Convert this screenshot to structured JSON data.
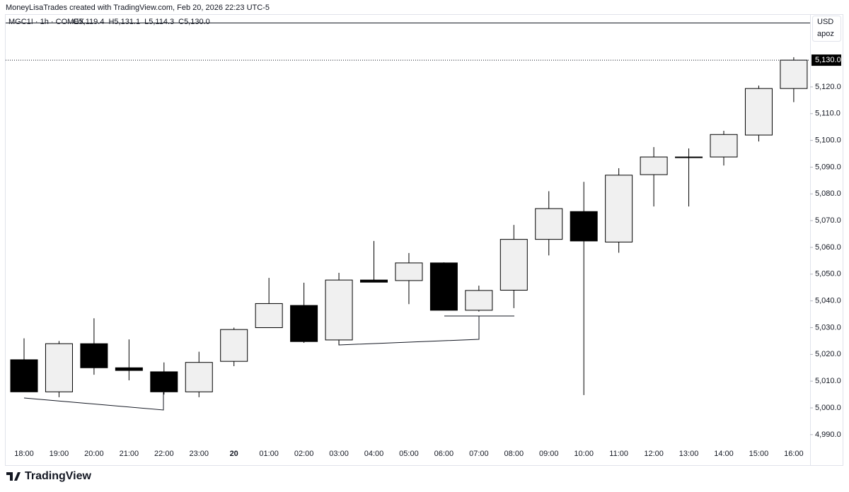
{
  "header": "MoneyLisaTrades created with TradingView.com, Feb 20, 2026 22:23 UTC-5",
  "footer": "TradingView",
  "chart_data": {
    "type": "candlestick",
    "symbol": "MGC1! · 1h · COMEX",
    "legend": [
      "O5,119.4",
      "H5,131.1",
      "L5,114.3",
      "C5,130.0"
    ],
    "currency": "USD",
    "scale_label": "apoz",
    "categories": [
      "18:00",
      "19:00",
      "20:00",
      "21:00",
      "22:00",
      "23:00",
      "20",
      "01:00",
      "02:00",
      "03:00",
      "04:00",
      "05:00",
      "06:00",
      "07:00",
      "08:00",
      "09:00",
      "10:00",
      "11:00",
      "12:00",
      "13:00",
      "14:00",
      "15:00",
      "16:00"
    ],
    "open": [
      5018,
      5006,
      5024,
      5015,
      5013.5,
      5006,
      5017.4,
      5030,
      5038.3,
      5025.4,
      5047.8,
      5047.6,
      5054.2,
      5036.5,
      5044,
      5063,
      5073.4,
      5062,
      5087.2,
      5093.6,
      5093.8,
      5102,
      5119.4
    ],
    "high": [
      5026,
      5025,
      5033.5,
      5025.6,
      5017,
      5021,
      5030,
      5048.6,
      5046.8,
      5050.5,
      5062.4,
      5057.9,
      5054.4,
      5045.7,
      5068.4,
      5081,
      5084.5,
      5089.6,
      5097.5,
      5097,
      5103.6,
      5120.5,
      5131.1
    ],
    "low": [
      5006,
      5004,
      5012.4,
      5010.3,
      5005,
      5004,
      5015.6,
      5030,
      5024.3,
      5023.5,
      5047,
      5038.8,
      5036.5,
      5036,
      5037.3,
      5057,
      5004.8,
      5058,
      5075.3,
      5075.3,
      5090.6,
      5099.6,
      5114.3
    ],
    "close": [
      5006,
      5024,
      5015,
      5014,
      5006,
      5017,
      5029.3,
      5039,
      5024.8,
      5047.8,
      5047,
      5054.2,
      5036.5,
      5043.9,
      5063,
      5074.5,
      5062.4,
      5087,
      5093.8,
      5093.8,
      5102.2,
      5119.4,
      5130
    ],
    "up_color": "#f0f0f0",
    "down_color": "#000000",
    "ylim": [
      4986,
      5147.2
    ],
    "yticks": [
      {
        "value": 4990,
        "label": "4,990.0"
      },
      {
        "value": 5000,
        "label": "5,000.0"
      },
      {
        "value": 5010,
        "label": "5,010.0"
      },
      {
        "value": 5020,
        "label": "5,020.0"
      },
      {
        "value": 5030,
        "label": "5,030.0"
      },
      {
        "value": 5040,
        "label": "5,040.0"
      },
      {
        "value": 5050,
        "label": "5,050.0"
      },
      {
        "value": 5060,
        "label": "5,060.0"
      },
      {
        "value": 5070,
        "label": "5,070.0"
      },
      {
        "value": 5080,
        "label": "5,080.0"
      },
      {
        "value": 5090,
        "label": "5,090.0"
      },
      {
        "value": 5100,
        "label": "5,100.0"
      },
      {
        "value": 5110,
        "label": "5,110.0"
      },
      {
        "value": 5120,
        "label": "5,120.0"
      }
    ],
    "last_price": {
      "value": 5130,
      "label": "5,130.0"
    }
  }
}
